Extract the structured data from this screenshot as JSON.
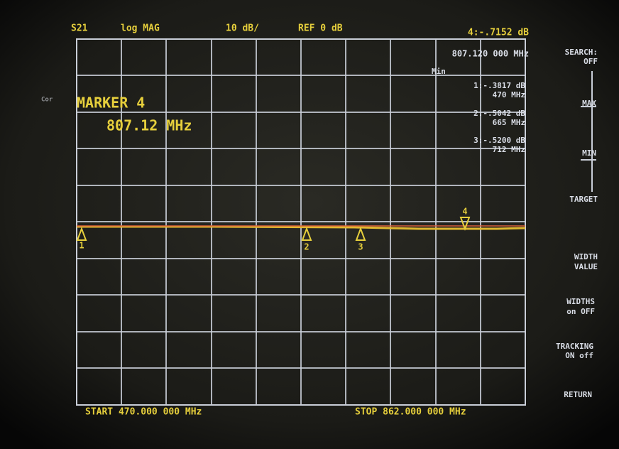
{
  "header": {
    "parameter": "S21",
    "format": "log MAG",
    "scale": "10 dB/",
    "reference": "REF 0 dB",
    "active_marker_value": "4:-.7152 dB",
    "active_marker_frequency": "807.120 000 MHz",
    "correction": "Cor"
  },
  "marker_list": {
    "label": "Min",
    "entries": [
      {
        "value": "1:-.3817 dB",
        "frequency": "470 MHz"
      },
      {
        "value": "2:-.5042 dB",
        "frequency": "665 MHz"
      },
      {
        "value": "3:-.5200 dB",
        "frequency": "712 MHz"
      }
    ]
  },
  "marker_box": {
    "title": "MARKER 4",
    "frequency": "807.12 MHz"
  },
  "markers": [
    "1",
    "2",
    "3",
    "4"
  ],
  "footer": {
    "start": "START 470.000 000 MHz",
    "stop": "STOP 862.000 000 MHz"
  },
  "softkeys": [
    [
      "SEARCH:",
      "OFF"
    ],
    [
      "MAX"
    ],
    [
      "MIN"
    ],
    [
      "TARGET"
    ],
    [
      "WIDTH",
      "VALUE"
    ],
    [
      "WIDTHS",
      "on OFF"
    ],
    [
      "TRACKING",
      "ON off"
    ],
    [
      "RETURN"
    ]
  ]
}
